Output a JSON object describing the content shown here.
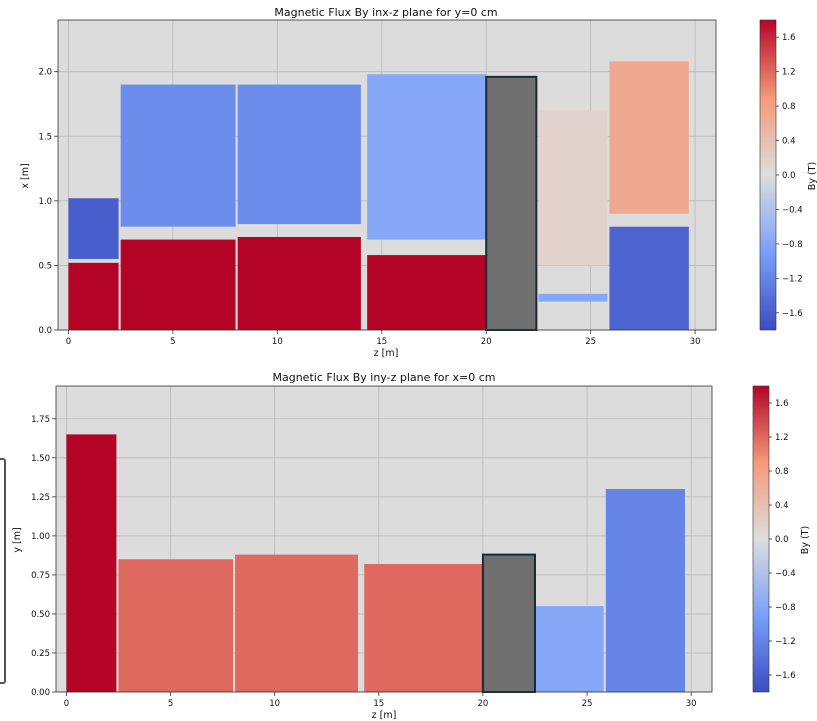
{
  "chart_data": [
    {
      "type": "heatmap",
      "title": "Magnetic Flux By inx-z plane for y=0 cm",
      "xlabel": "z [m]",
      "ylabel": "x [m]",
      "colorbar_label": "By (T)",
      "xlim": [
        -0.5,
        31.0
      ],
      "ylim": [
        0,
        2.4
      ],
      "xticks": [
        0,
        5,
        10,
        15,
        20,
        25,
        30
      ],
      "yticks": [
        0.0,
        0.5,
        1.0,
        1.5,
        2.0
      ],
      "colorbar_ticks": [
        -1.6,
        -1.2,
        -0.8,
        -0.4,
        0.0,
        0.4,
        0.8,
        1.2,
        1.6
      ],
      "clim": [
        -1.8,
        1.8
      ],
      "grid": true,
      "background_color": "#dcdcdc",
      "regions": [
        {
          "z": [
            0,
            2.4
          ],
          "x": [
            0,
            0.52
          ],
          "By": 1.8
        },
        {
          "z": [
            0,
            2.4
          ],
          "x": [
            0.55,
            1.02
          ],
          "By": -1.6
        },
        {
          "z": [
            2.5,
            8.0
          ],
          "x": [
            0,
            0.7
          ],
          "By": 1.8
        },
        {
          "z": [
            2.5,
            8.0
          ],
          "x": [
            0.8,
            1.9
          ],
          "By": -1.1
        },
        {
          "z": [
            8.1,
            14.0
          ],
          "x": [
            0,
            0.72
          ],
          "By": 1.8
        },
        {
          "z": [
            8.1,
            14.0
          ],
          "x": [
            0.82,
            1.9
          ],
          "By": -1.1
        },
        {
          "z": [
            14.3,
            20.0
          ],
          "x": [
            0,
            0.58
          ],
          "By": 1.8
        },
        {
          "z": [
            14.3,
            20.0
          ],
          "x": [
            0.7,
            1.98
          ],
          "By": -0.8
        },
        {
          "z": [
            22.5,
            25.8
          ],
          "x": [
            0.22,
            0.28
          ],
          "By": -0.8
        },
        {
          "z": [
            22.5,
            25.8
          ],
          "x": [
            0.5,
            1.7
          ],
          "By": 0.15
        },
        {
          "z": [
            25.9,
            29.7
          ],
          "x": [
            0,
            0.8
          ],
          "By": -1.55
        },
        {
          "z": [
            25.9,
            29.7
          ],
          "x": [
            0.9,
            2.08
          ],
          "By": 0.7
        }
      ],
      "iron_block": {
        "z": [
          20.0,
          22.4
        ],
        "x": [
          0,
          1.96
        ]
      }
    },
    {
      "type": "heatmap",
      "title": "Magnetic Flux By iny-z plane for x=0 cm",
      "xlabel": "z [m]",
      "ylabel": "y [m]",
      "colorbar_label": "By (T)",
      "xlim": [
        -0.5,
        31.0
      ],
      "ylim": [
        0,
        1.96
      ],
      "xticks": [
        0,
        5,
        10,
        15,
        20,
        25,
        30
      ],
      "yticks": [
        0.0,
        0.25,
        0.5,
        0.75,
        1.0,
        1.25,
        1.5,
        1.75
      ],
      "colorbar_ticks": [
        -1.6,
        -1.2,
        -0.8,
        -0.4,
        0.0,
        0.4,
        0.8,
        1.2,
        1.6
      ],
      "clim": [
        -1.8,
        1.8
      ],
      "grid": true,
      "background_color": "#dcdcdc",
      "regions": [
        {
          "z": [
            0,
            2.4
          ],
          "y": [
            0,
            1.65
          ],
          "By": 1.8
        },
        {
          "z": [
            2.5,
            8.0
          ],
          "y": [
            0,
            0.85
          ],
          "By": 1.2
        },
        {
          "z": [
            8.1,
            14.0
          ],
          "y": [
            0,
            0.88
          ],
          "By": 1.2
        },
        {
          "z": [
            14.3,
            20.0
          ],
          "y": [
            0,
            0.82
          ],
          "By": 1.2
        },
        {
          "z": [
            22.5,
            25.8
          ],
          "y": [
            0,
            0.55
          ],
          "By": -0.8
        },
        {
          "z": [
            25.9,
            29.7
          ],
          "y": [
            0,
            1.3
          ],
          "By": -1.2
        }
      ],
      "iron_block": {
        "z": [
          20.0,
          22.5
        ],
        "y": [
          0,
          0.88
        ]
      }
    }
  ]
}
